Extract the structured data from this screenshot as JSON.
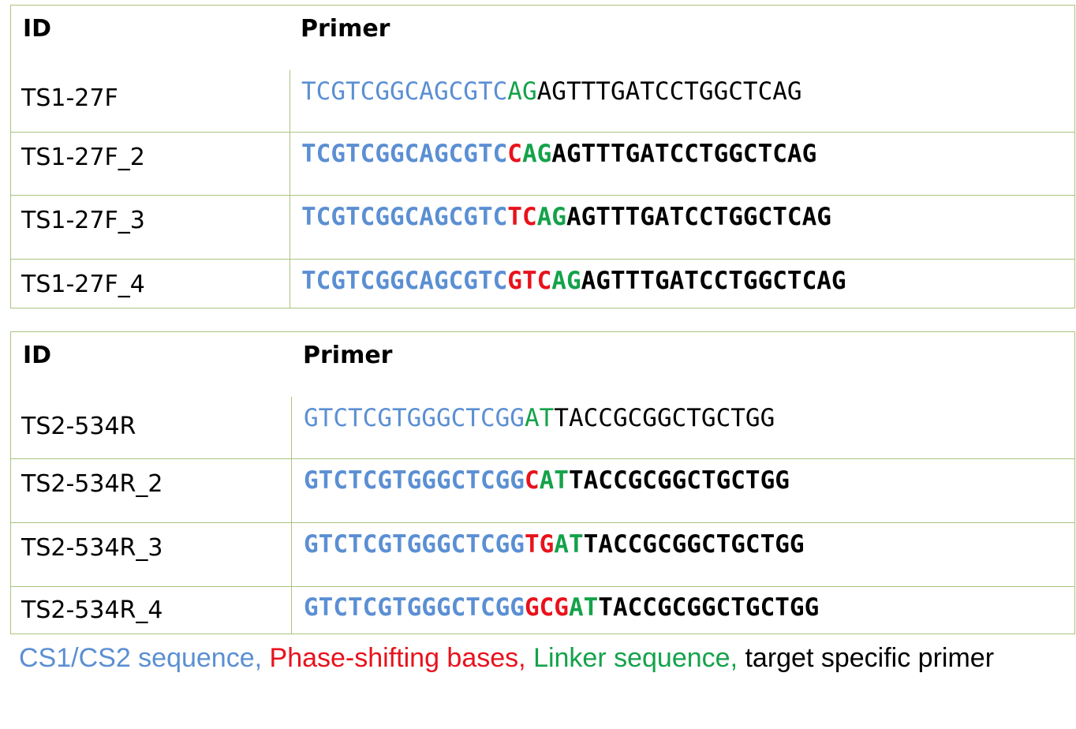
{
  "tables": [
    {
      "header": {
        "id": "ID",
        "primer": "Primer"
      },
      "rows": [
        {
          "id": "TS1-27F",
          "cs": "TCGTCGGCAGCGTC",
          "phase": "",
          "linker": "AG",
          "target": "AGTTTGATCCTGGCTCAG"
        },
        {
          "id": "TS1-27F_2",
          "cs": "TCGTCGGCAGCGTC",
          "phase": "C",
          "linker": "AG",
          "target": "AGTTTGATCCTGGCTCAG"
        },
        {
          "id": "TS1-27F_3",
          "cs": "TCGTCGGCAGCGTC",
          "phase": "TC",
          "linker": "AG",
          "target": "AGTTTGATCCTGGCTCAG"
        },
        {
          "id": "TS1-27F_4",
          "cs": "TCGTCGGCAGCGTC",
          "phase": "GTC",
          "linker": "AG",
          "target": "AGTTTGATCCTGGCTCAG"
        }
      ]
    },
    {
      "header": {
        "id": "ID",
        "primer": "Primer"
      },
      "rows": [
        {
          "id": "TS2-534R",
          "cs": "GTCTCGTGGGCTCGG",
          "phase": "",
          "linker": "AT",
          "target": "TACCGCGGCTGCTGG"
        },
        {
          "id": "TS2-534R_2",
          "cs": "GTCTCGTGGGCTCGG",
          "phase": "C",
          "linker": "AT",
          "target": "TACCGCGGCTGCTGG"
        },
        {
          "id": "TS2-534R_3",
          "cs": "GTCTCGTGGGCTCGG",
          "phase": "TG",
          "linker": "AT",
          "target": "TACCGCGGCTGCTGG"
        },
        {
          "id": "TS2-534R_4",
          "cs": "GTCTCGTGGGCTCGG",
          "phase": "GCG",
          "linker": "AT",
          "target": "TACCGCGGCTGCTGG"
        }
      ]
    }
  ],
  "legend": {
    "cs": "CS1/CS2 sequence,",
    "phase": "Phase-shifting bases,",
    "linker": "Linker sequence,",
    "target": "target specific primer"
  },
  "colors": {
    "cs": "#5b8fd3",
    "phase": "#e8121c",
    "linker": "#14a24a",
    "target": "#000000",
    "border": "#a9c47f"
  }
}
